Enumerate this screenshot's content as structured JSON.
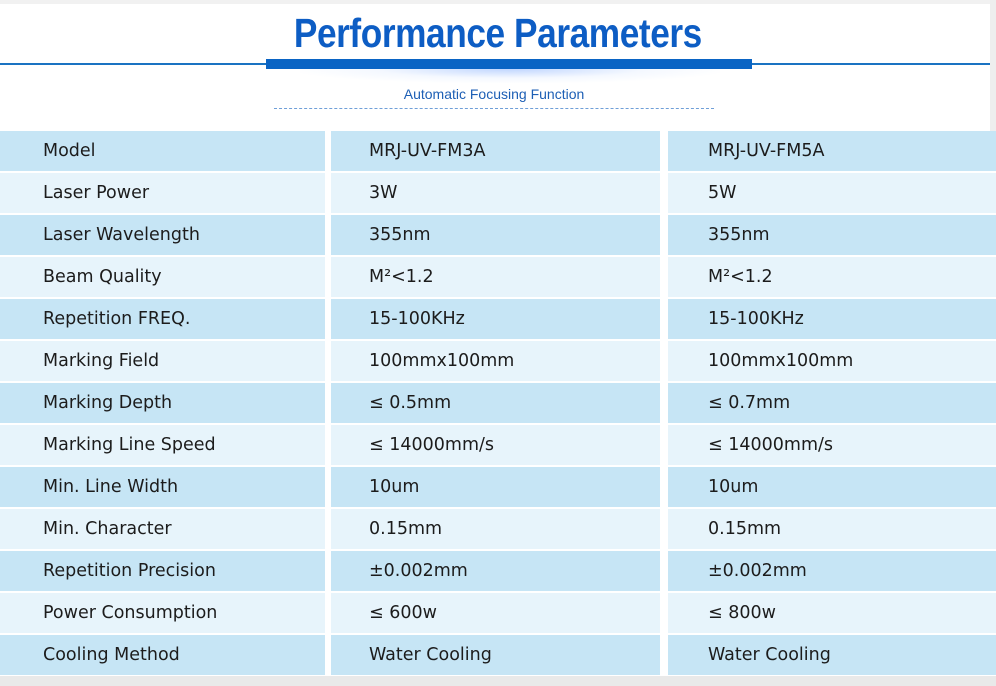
{
  "header": {
    "title": "Performance Parameters",
    "subtitle": "Automatic Focusing Function"
  },
  "table": {
    "rows": [
      {
        "label": "Model",
        "a": "MRJ-UV-FM3A",
        "b": "MRJ-UV-FM5A"
      },
      {
        "label": "Laser Power",
        "a": "3W",
        "b": "5W"
      },
      {
        "label": "Laser Wavelength",
        "a": "355nm",
        "b": "355nm"
      },
      {
        "label": "Beam Quality",
        "a": "M²<1.2",
        "b": "M²<1.2"
      },
      {
        "label": "Repetition FREQ.",
        "a": "15-100KHz",
        "b": "15-100KHz"
      },
      {
        "label": "Marking Field",
        "a": "100mmx100mm",
        "b": "100mmx100mm"
      },
      {
        "label": "Marking Depth",
        "a": "≤ 0.5mm",
        "b": "≤ 0.7mm"
      },
      {
        "label": "Marking Line Speed",
        "a": "≤ 14000mm/s",
        "b": "≤ 14000mm/s"
      },
      {
        "label": "Min. Line Width",
        "a": "10um",
        "b": "10um"
      },
      {
        "label": "Min. Character",
        "a": "0.15mm",
        "b": "0.15mm"
      },
      {
        "label": "Repetition Precision",
        "a": "±0.002mm",
        "b": "±0.002mm"
      },
      {
        "label": "Power Consumption",
        "a": "≤ 600w",
        "b": "≤ 800w"
      },
      {
        "label": "Cooling Method",
        "a": "Water Cooling",
        "b": "Water Cooling"
      }
    ]
  }
}
